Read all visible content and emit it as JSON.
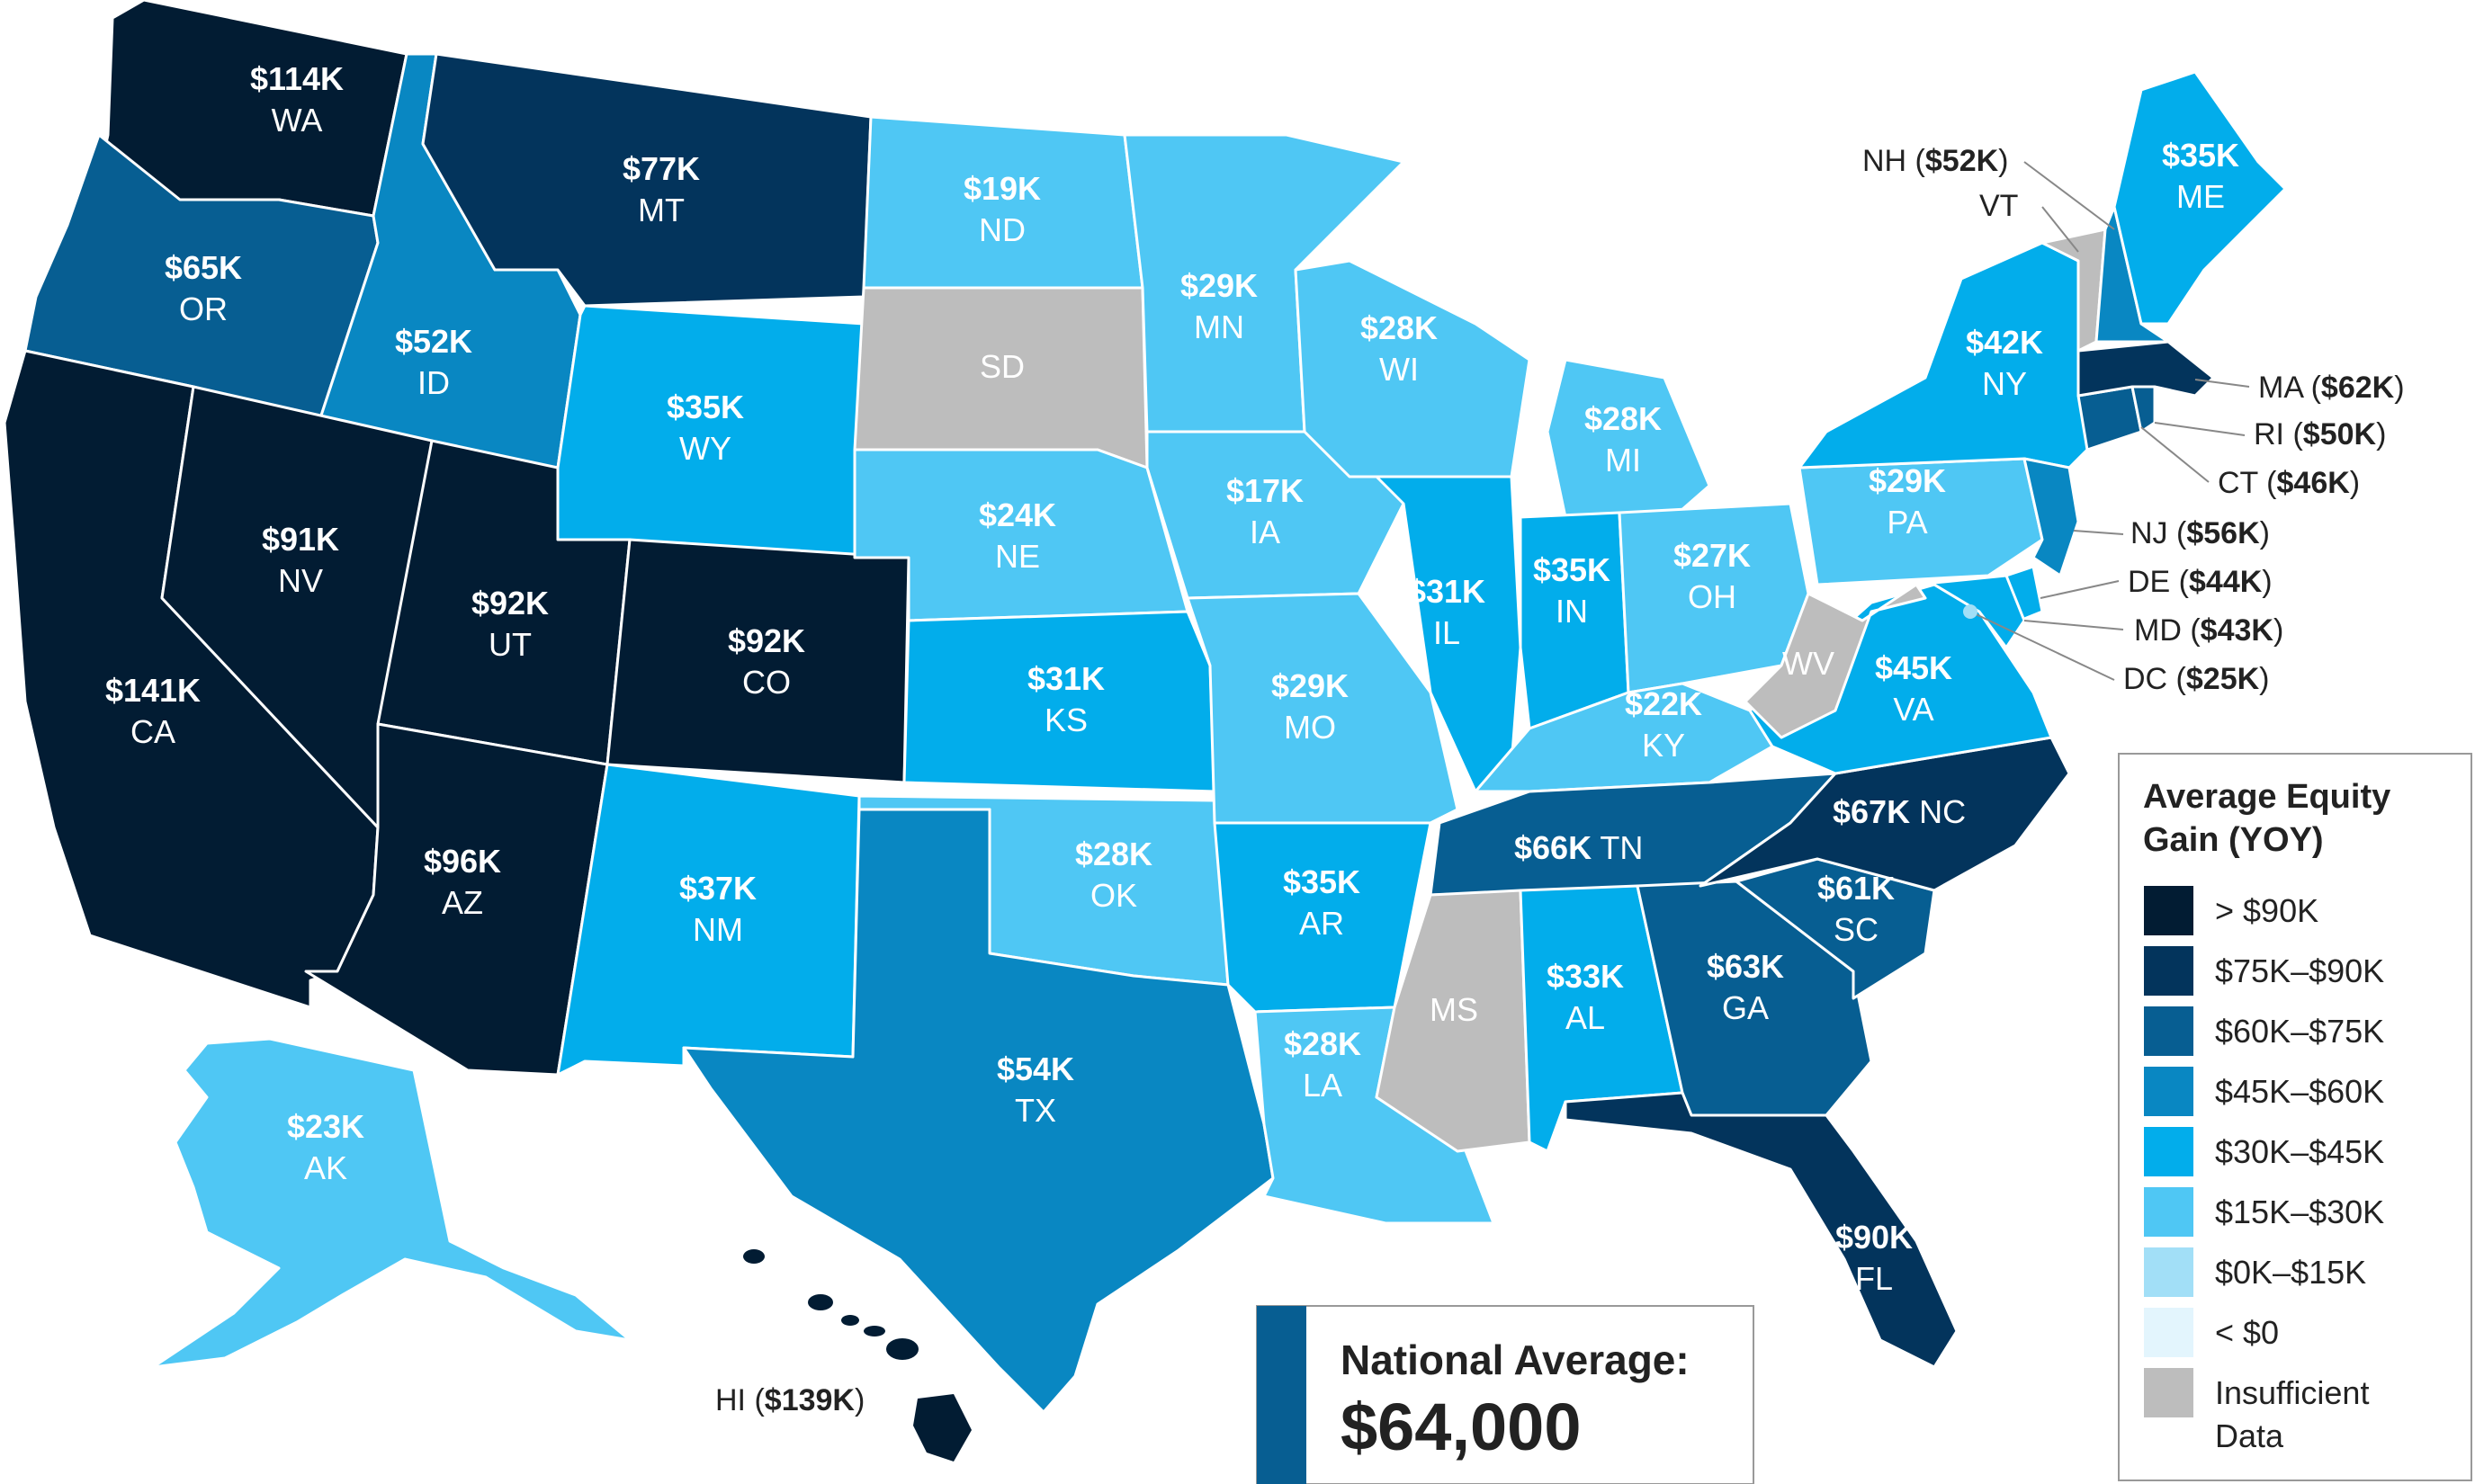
{
  "legend": {
    "title_line1": "Average Equity",
    "title_line2": "Gain (YOY)",
    "items": [
      {
        "label": "> $90K",
        "color": "#021c33"
      },
      {
        "label": "$75K–$90K",
        "color": "#03345c"
      },
      {
        "label": "$60K–$75K",
        "color": "#075e92"
      },
      {
        "label": "$45K–$60K",
        "color": "#0987c2"
      },
      {
        "label": "$30K–$45K",
        "color": "#02adeb"
      },
      {
        "label": "$15K–$30K",
        "color": "#4fc7f4"
      },
      {
        "label": "$0K–$15K",
        "color": "#a2dff7"
      },
      {
        "label": "< $0",
        "color": "#e3f5fd"
      },
      {
        "label": "Insufficient",
        "label2": "Data",
        "color": "#bdbdbd"
      }
    ]
  },
  "national_average": {
    "label": "National Average:",
    "value": "$64,000",
    "accent": "#075e92"
  },
  "states": {
    "WA": {
      "abbr": "WA",
      "value": "$114K"
    },
    "OR": {
      "abbr": "OR",
      "value": "$65K"
    },
    "CA": {
      "abbr": "CA",
      "value": "$141K"
    },
    "ID": {
      "abbr": "ID",
      "value": "$52K"
    },
    "NV": {
      "abbr": "NV",
      "value": "$91K"
    },
    "MT": {
      "abbr": "MT",
      "value": "$77K"
    },
    "WY": {
      "abbr": "WY",
      "value": "$35K"
    },
    "UT": {
      "abbr": "UT",
      "value": "$92K"
    },
    "AZ": {
      "abbr": "AZ",
      "value": "$96K"
    },
    "CO": {
      "abbr": "CO",
      "value": "$92K"
    },
    "NM": {
      "abbr": "NM",
      "value": "$37K"
    },
    "ND": {
      "abbr": "ND",
      "value": "$19K"
    },
    "SD": {
      "abbr": "SD",
      "value": ""
    },
    "NE": {
      "abbr": "NE",
      "value": "$24K"
    },
    "KS": {
      "abbr": "KS",
      "value": "$31K"
    },
    "OK": {
      "abbr": "OK",
      "value": "$28K"
    },
    "TX": {
      "abbr": "TX",
      "value": "$54K"
    },
    "MN": {
      "abbr": "MN",
      "value": "$29K"
    },
    "IA": {
      "abbr": "IA",
      "value": "$17K"
    },
    "MO": {
      "abbr": "MO",
      "value": "$29K"
    },
    "AR": {
      "abbr": "AR",
      "value": "$35K"
    },
    "LA": {
      "abbr": "LA",
      "value": "$28K"
    },
    "WI": {
      "abbr": "WI",
      "value": "$28K"
    },
    "IL": {
      "abbr": "IL",
      "value": "$31K"
    },
    "MI": {
      "abbr": "MI",
      "value": "$28K"
    },
    "IN": {
      "abbr": "IN",
      "value": "$35K"
    },
    "OH": {
      "abbr": "OH",
      "value": "$27K"
    },
    "KY": {
      "abbr": "KY",
      "value": "$22K"
    },
    "TN": {
      "abbr": "TN",
      "value": "$66K"
    },
    "MS": {
      "abbr": "MS",
      "value": ""
    },
    "AL": {
      "abbr": "AL",
      "value": "$33K"
    },
    "GA": {
      "abbr": "GA",
      "value": "$63K"
    },
    "FL": {
      "abbr": "FL",
      "value": "$90K"
    },
    "SC": {
      "abbr": "SC",
      "value": "$61K"
    },
    "NC": {
      "abbr": "NC",
      "value": "$67K"
    },
    "VA": {
      "abbr": "VA",
      "value": "$45K"
    },
    "WV": {
      "abbr": "WV",
      "value": ""
    },
    "PA": {
      "abbr": "PA",
      "value": "$29K"
    },
    "NY": {
      "abbr": "NY",
      "value": "$42K"
    },
    "ME": {
      "abbr": "ME",
      "value": "$35K"
    },
    "AK": {
      "abbr": "AK",
      "value": "$23K"
    }
  },
  "callouts": {
    "NH": {
      "abbr": "NH",
      "value": "$52K"
    },
    "VT": {
      "abbr": "VT"
    },
    "MA": {
      "abbr": "MA",
      "value": "$62K"
    },
    "RI": {
      "abbr": "RI",
      "value": "$50K"
    },
    "CT": {
      "abbr": "CT",
      "value": "$46K"
    },
    "NJ": {
      "abbr": "NJ",
      "value": "$56K"
    },
    "DE": {
      "abbr": "DE",
      "value": "$44K"
    },
    "MD": {
      "abbr": "MD",
      "value": "$43K"
    },
    "DC": {
      "abbr": "DC",
      "value": "$25K"
    },
    "HI": {
      "abbr": "HI",
      "value": "$139K"
    }
  },
  "colors": {
    "gt90": "#021c33",
    "c75_90": "#03345c",
    "c60_75": "#075e92",
    "c45_60": "#0987c2",
    "c30_45": "#02adeb",
    "c15_30": "#4fc7f4",
    "c0_15": "#a2dff7",
    "lt0": "#e3f5fd",
    "insufficient": "#bdbdbd"
  }
}
